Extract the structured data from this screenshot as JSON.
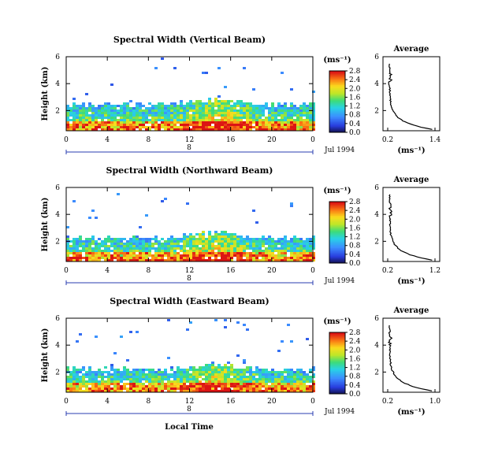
{
  "chart_data": [
    {
      "type": "heatmap",
      "title": "Spectral Width (Vertical Beam)",
      "ylabel": "Height (km)",
      "y_ticks": [
        "2",
        "4",
        "6"
      ],
      "x_ticks": [
        "0",
        "4",
        "8",
        "12",
        "16",
        "20",
        "0"
      ],
      "date_mark": "8",
      "date_label": "Jul 1994",
      "colorbar_unit": "(ms⁻¹)",
      "colorbar_ticks": [
        "0.0",
        "0.4",
        "0.8",
        "1.2",
        "1.6",
        "2.0",
        "2.4",
        "2.8"
      ],
      "average": {
        "title": "Average",
        "xlabel": "(ms⁻¹)",
        "x_ticks": [
          "0.2",
          "1.4"
        ],
        "y_ticks": [
          "2",
          "4",
          "6"
        ]
      }
    },
    {
      "type": "heatmap",
      "title": "Spectral Width (Northward Beam)",
      "ylabel": "Height (km)",
      "y_ticks": [
        "2",
        "4",
        "6"
      ],
      "x_ticks": [
        "0",
        "4",
        "8",
        "12",
        "16",
        "20",
        "0"
      ],
      "date_mark": "8",
      "date_label": "Jul 1994",
      "colorbar_unit": "(ms⁻¹)",
      "colorbar_ticks": [
        "0.0",
        "0.4",
        "0.8",
        "1.2",
        "1.6",
        "2.0",
        "2.4",
        "2.8"
      ],
      "average": {
        "title": "Average",
        "xlabel": "(ms⁻¹)",
        "x_ticks": [
          "0.2",
          "1.2"
        ],
        "y_ticks": [
          "2",
          "4",
          "6"
        ]
      }
    },
    {
      "type": "heatmap",
      "title": "Spectral Width (Eastward Beam)",
      "ylabel": "Height (km)",
      "xlabel": "Local Time",
      "y_ticks": [
        "2",
        "4",
        "6"
      ],
      "x_ticks": [
        "0",
        "4",
        "8",
        "12",
        "16",
        "20",
        "0"
      ],
      "date_mark": "8",
      "date_label": "Jul 1994",
      "colorbar_unit": "(ms⁻¹)",
      "colorbar_ticks": [
        "0.0",
        "0.4",
        "0.8",
        "1.2",
        "1.6",
        "2.0",
        "2.4",
        "2.8"
      ],
      "average": {
        "title": "Average",
        "xlabel": "(ms⁻¹)",
        "x_ticks": [
          "0.2",
          "1.0"
        ],
        "y_ticks": [
          "2",
          "4",
          "6"
        ]
      }
    }
  ]
}
